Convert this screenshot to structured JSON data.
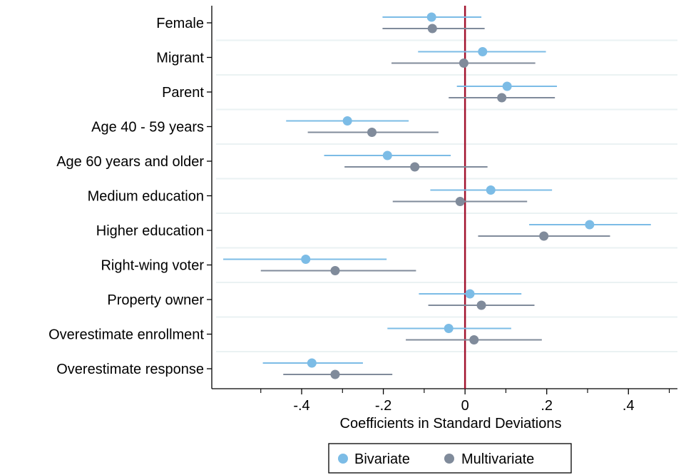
{
  "chart_data": {
    "type": "scatter",
    "subtype": "coefficient-plot",
    "title": "",
    "xlabel": "Coefficients in Standard Deviations",
    "ylabel": "",
    "xlim": [
      -0.62,
      0.52
    ],
    "xticks": [
      -0.4,
      -0.2,
      0,
      0.2,
      0.4
    ],
    "xtick_labels": [
      "-.4",
      "-.2",
      "0",
      ".2",
      ".4"
    ],
    "xminor_ticks": [
      -0.5,
      -0.3,
      -0.1,
      0.1,
      0.3,
      0.5
    ],
    "reference_line": {
      "x": 0,
      "color": "#a3142f"
    },
    "categories": [
      "Female",
      "Migrant",
      "Parent",
      "Age 40 - 59 years",
      "Age 60 years and older",
      "Medium education",
      "Higher education",
      "Right-wing voter",
      "Property owner",
      "Overestimate enrollment",
      "Overestimate response"
    ],
    "series": [
      {
        "name": "Bivariate",
        "color": "#7cbce6",
        "estimates": [
          -0.082,
          0.043,
          0.103,
          -0.288,
          -0.19,
          0.063,
          0.305,
          -0.39,
          0.012,
          -0.04,
          -0.375
        ],
        "ci_low": [
          -0.202,
          -0.115,
          -0.02,
          -0.438,
          -0.345,
          -0.085,
          0.157,
          -0.592,
          -0.113,
          -0.19,
          -0.495
        ],
        "ci_high": [
          0.04,
          0.198,
          0.225,
          -0.138,
          -0.035,
          0.213,
          0.455,
          -0.192,
          0.138,
          0.113,
          -0.25
        ]
      },
      {
        "name": "Multivariate",
        "color": "#808b9b",
        "estimates": [
          -0.08,
          -0.003,
          0.09,
          -0.228,
          -0.123,
          -0.012,
          0.193,
          -0.318,
          0.04,
          0.022,
          -0.318
        ],
        "ci_low": [
          -0.202,
          -0.18,
          -0.04,
          -0.385,
          -0.295,
          -0.177,
          0.032,
          -0.5,
          -0.09,
          -0.145,
          -0.445
        ],
        "ci_high": [
          0.048,
          0.172,
          0.22,
          -0.065,
          0.055,
          0.152,
          0.355,
          -0.12,
          0.17,
          0.188,
          -0.178
        ]
      }
    ],
    "legend": {
      "position": "bottom-center",
      "entries": [
        "Bivariate",
        "Multivariate"
      ]
    },
    "grid": {
      "horizontal": true,
      "vertical": false
    }
  }
}
